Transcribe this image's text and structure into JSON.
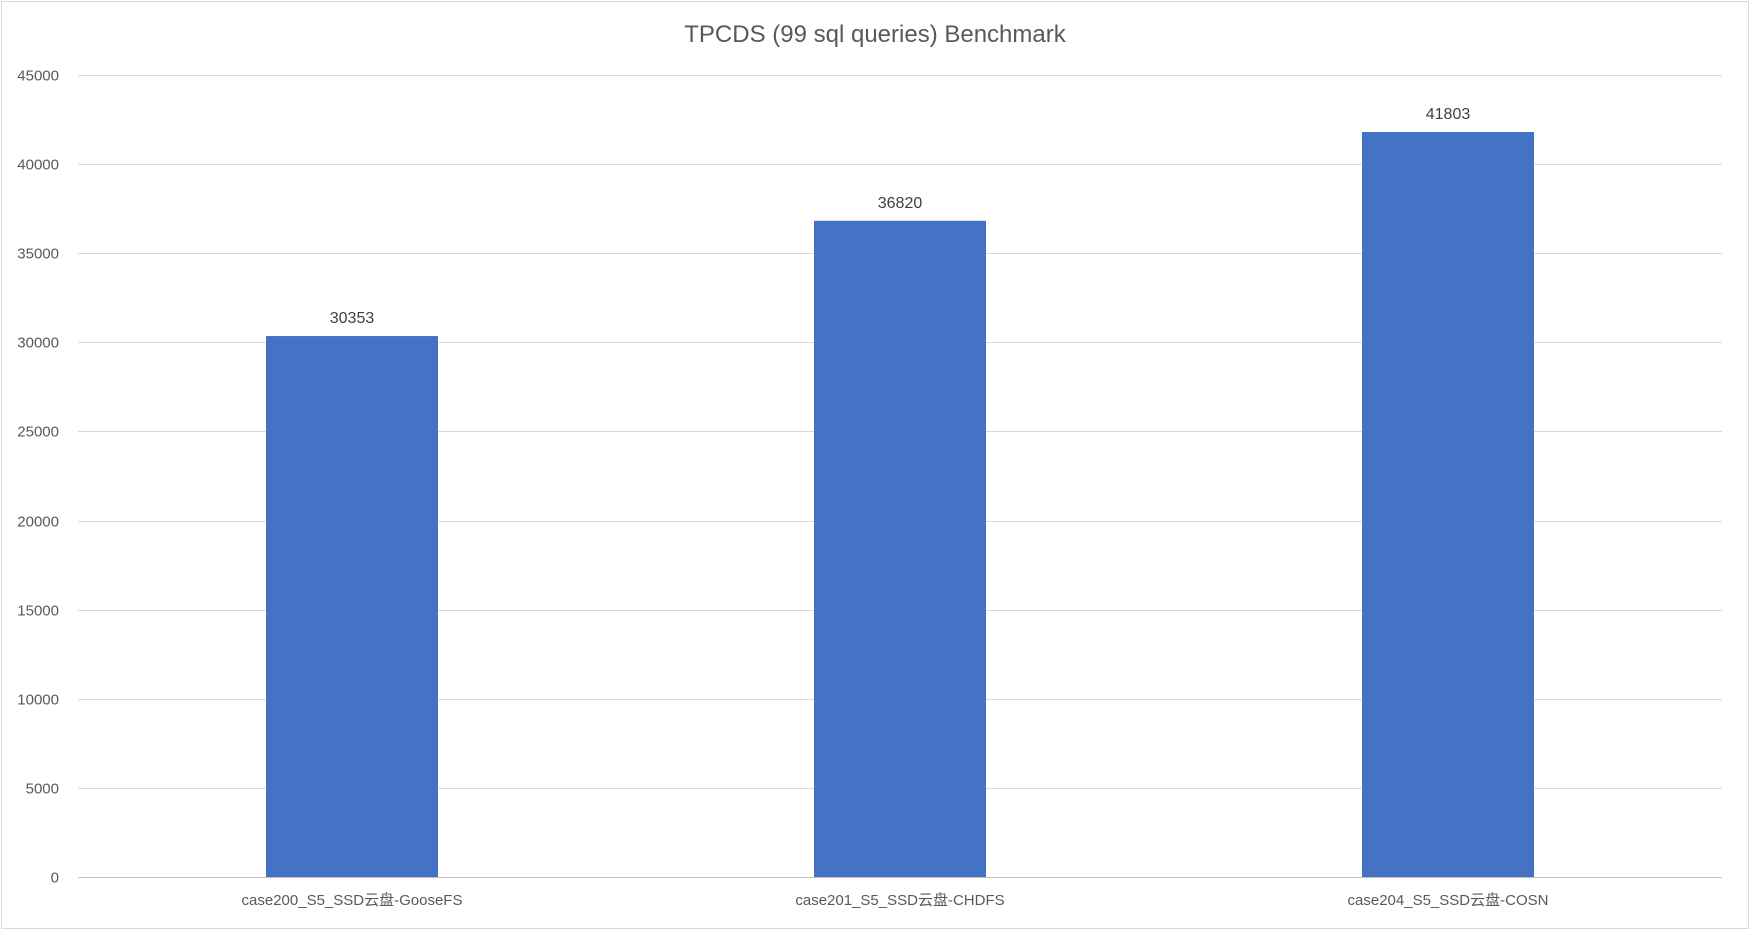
{
  "chart_data": {
    "type": "bar",
    "title": "TPCDS (99 sql queries) Benchmark",
    "categories": [
      "case200_S5_SSD云盘-GooseFS",
      "case201_S5_SSD云盘-CHDFS",
      "case204_S5_SSD云盘-COSN"
    ],
    "values": [
      30353,
      36820,
      41803
    ],
    "ylim": [
      0,
      45000
    ],
    "yticks": [
      0,
      5000,
      10000,
      15000,
      20000,
      25000,
      30000,
      35000,
      40000,
      45000
    ],
    "grid": true,
    "bar_color": "#4472C4",
    "data_labels": true
  }
}
